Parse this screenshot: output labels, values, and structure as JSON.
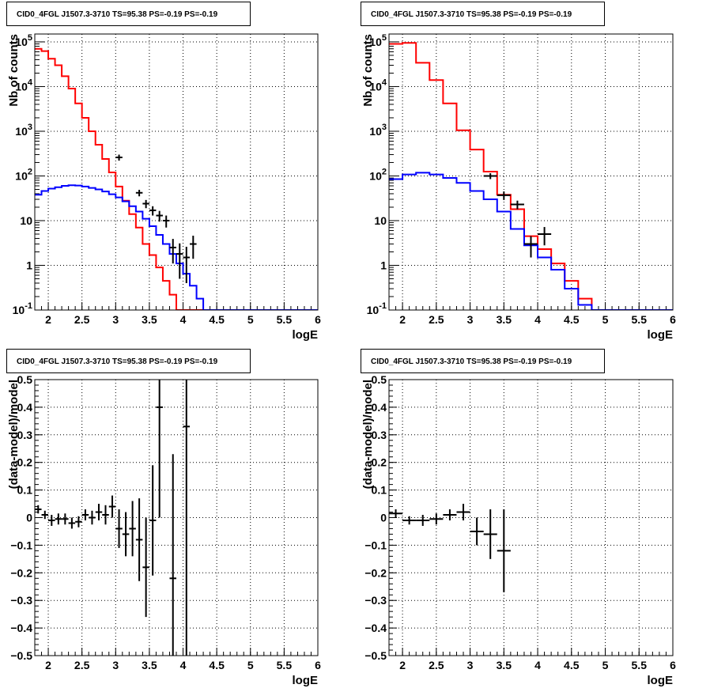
{
  "chart_data": [
    {
      "type": "line",
      "title": "CID0_4FGL J1507.3-3710 TS=95.38 PS=-0.19 PS=-0.19",
      "xlabel": "logE",
      "ylabel": "Nb of counts",
      "yscale": "log",
      "xlim": [
        1.8,
        6.0
      ],
      "ylim": [
        0.1,
        150000
      ],
      "x_ticks": [
        "2",
        "2.5",
        "3",
        "3.5",
        "4",
        "4.5",
        "5",
        "5.5",
        "6"
      ],
      "y_ticks": [
        "10^-1",
        "1",
        "10",
        "10^2",
        "10^3",
        "10^4",
        "10^5"
      ],
      "grid": true,
      "bin_width": 0.1,
      "bin_edges_start": 1.8,
      "series": [
        {
          "color": "#ff0000",
          "values": [
            70000,
            62000,
            42000,
            30000,
            17000,
            9000,
            4200,
            2000,
            1000,
            500,
            240,
            120,
            58,
            28,
            14,
            7,
            3,
            1.7,
            0.9,
            0.45,
            0.22,
            0.1,
            0.1,
            0.1,
            0.1,
            0.1,
            0.1,
            0.1,
            0.1,
            0.1,
            0.1,
            0.1,
            0.1,
            0.1,
            0.1,
            0.1,
            0.1,
            0.1,
            0.1,
            0.1,
            0.1,
            0.1
          ]
        },
        {
          "color": "#0000ff",
          "values": [
            38,
            46,
            52,
            56,
            60,
            62,
            61,
            58,
            54,
            50,
            45,
            39,
            33,
            27,
            21,
            16,
            11,
            7.5,
            4.8,
            3,
            1.8,
            1.1,
            0.65,
            0.35,
            0.18,
            0.1,
            0.1,
            0.1,
            0.1,
            0.1,
            0.1,
            0.1,
            0.1,
            0.1,
            0.1,
            0.1,
            0.1,
            0.1,
            0.1,
            0.1,
            0.1,
            0.1
          ]
        },
        {
          "color": "#000000",
          "type": "errorbar",
          "points": [
            [
              3.05,
              260,
              40
            ],
            [
              3.35,
              42,
              7
            ],
            [
              3.45,
              24,
              5
            ],
            [
              3.55,
              17,
              4
            ],
            [
              3.65,
              13,
              3.5
            ],
            [
              3.75,
              10,
              3
            ],
            [
              3.85,
              2.5,
              1.4
            ],
            [
              3.95,
              1.8,
              1.3
            ],
            [
              4.05,
              1.5,
              1.1
            ],
            [
              4.15,
              3,
              1.6
            ]
          ]
        }
      ]
    },
    {
      "type": "line",
      "title": "CID0_4FGL J1507.3-3710 TS=95.38 PS=-0.19 PS=-0.19",
      "xlabel": "logE",
      "ylabel": "Nb of counts",
      "yscale": "log",
      "xlim": [
        1.8,
        6.0
      ],
      "ylim": [
        0.1,
        150000
      ],
      "x_ticks": [
        "2",
        "2.5",
        "3",
        "3.5",
        "4",
        "4.5",
        "5",
        "5.5",
        "6"
      ],
      "y_ticks": [
        "10^-1",
        "1",
        "10",
        "10^2",
        "10^3",
        "10^4",
        "10^5"
      ],
      "grid": true,
      "bin_width": 0.2,
      "bin_edges_start": 1.8,
      "series": [
        {
          "color": "#ff0000",
          "values": [
            90000,
            95000,
            34000,
            14000,
            4200,
            1050,
            390,
            125,
            38,
            18,
            4.5,
            2.3,
            1.1,
            0.45,
            0.18,
            0.1,
            0.1,
            0.1,
            0.1,
            0.1,
            0.1
          ]
        },
        {
          "color": "#0000ff",
          "values": [
            85,
            108,
            118,
            108,
            90,
            70,
            46,
            30,
            16,
            6.5,
            2.8,
            1.5,
            0.8,
            0.3,
            0.13,
            0.1,
            0.1,
            0.1,
            0.1,
            0.1,
            0.1
          ]
        },
        {
          "color": "#000000",
          "type": "errorbar",
          "points": [
            [
              3.3,
              100,
              15
            ],
            [
              3.5,
              37,
              8
            ],
            [
              3.7,
              23,
              5
            ],
            [
              3.9,
              3,
              1.5
            ],
            [
              4.1,
              5,
              2.2
            ]
          ]
        }
      ]
    },
    {
      "type": "scatter",
      "title": "CID0_4FGL J1507.3-3710 TS=95.38 PS=-0.19 PS=-0.19",
      "xlabel": "logE",
      "ylabel": "(data-model)/model",
      "xlim": [
        1.8,
        6.0
      ],
      "ylim": [
        -0.5,
        0.5
      ],
      "x_ticks": [
        "2",
        "2.5",
        "3",
        "3.5",
        "4",
        "4.5",
        "5",
        "5.5",
        "6"
      ],
      "y_ticks": [
        "-0.5",
        "-0.4",
        "-0.3",
        "-0.2",
        "-0.1",
        "0",
        "0.1",
        "0.2",
        "0.3",
        "0.4",
        "0.5"
      ],
      "grid": true,
      "x_halfwidth": 0.05,
      "points": [
        [
          1.85,
          0.03,
          0.015
        ],
        [
          1.95,
          0.01,
          0.015
        ],
        [
          2.05,
          -0.01,
          0.02
        ],
        [
          2.15,
          -0.005,
          0.02
        ],
        [
          2.25,
          -0.005,
          0.02
        ],
        [
          2.35,
          -0.02,
          0.02
        ],
        [
          2.45,
          -0.015,
          0.02
        ],
        [
          2.55,
          0.01,
          0.02
        ],
        [
          2.65,
          0.0,
          0.025
        ],
        [
          2.75,
          0.02,
          0.03
        ],
        [
          2.85,
          0.01,
          0.035
        ],
        [
          2.95,
          0.04,
          0.04
        ],
        [
          3.05,
          -0.04,
          0.07
        ],
        [
          3.15,
          -0.06,
          0.08
        ],
        [
          3.25,
          -0.04,
          0.1
        ],
        [
          3.35,
          -0.08,
          0.15
        ],
        [
          3.45,
          -0.18,
          0.18
        ],
        [
          3.55,
          -0.01,
          0.2
        ],
        [
          3.65,
          0.4,
          0.4
        ],
        [
          3.85,
          -0.22,
          0.45
        ],
        [
          4.05,
          0.33,
          0.9
        ]
      ]
    },
    {
      "type": "scatter",
      "title": "CID0_4FGL J1507.3-3710 TS=95.38 PS=-0.19 PS=-0.19",
      "xlabel": "logE",
      "ylabel": "(data-model)/model",
      "xlim": [
        1.8,
        6.0
      ],
      "ylim": [
        -0.5,
        0.5
      ],
      "x_ticks": [
        "2",
        "2.5",
        "3",
        "3.5",
        "4",
        "4.5",
        "5",
        "5.5",
        "6"
      ],
      "y_ticks": [
        "-0.5",
        "-0.4",
        "-0.3",
        "-0.2",
        "-0.1",
        "0",
        "0.1",
        "0.2",
        "0.3",
        "0.4",
        "0.5"
      ],
      "grid": true,
      "x_halfwidth": 0.1,
      "points": [
        [
          1.9,
          0.015,
          0.015
        ],
        [
          2.1,
          -0.01,
          0.015
        ],
        [
          2.3,
          -0.01,
          0.02
        ],
        [
          2.5,
          -0.005,
          0.02
        ],
        [
          2.7,
          0.01,
          0.02
        ],
        [
          2.9,
          0.02,
          0.03
        ],
        [
          3.1,
          -0.05,
          0.05
        ],
        [
          3.3,
          -0.06,
          0.09
        ],
        [
          3.5,
          -0.12,
          0.15
        ]
      ]
    }
  ]
}
